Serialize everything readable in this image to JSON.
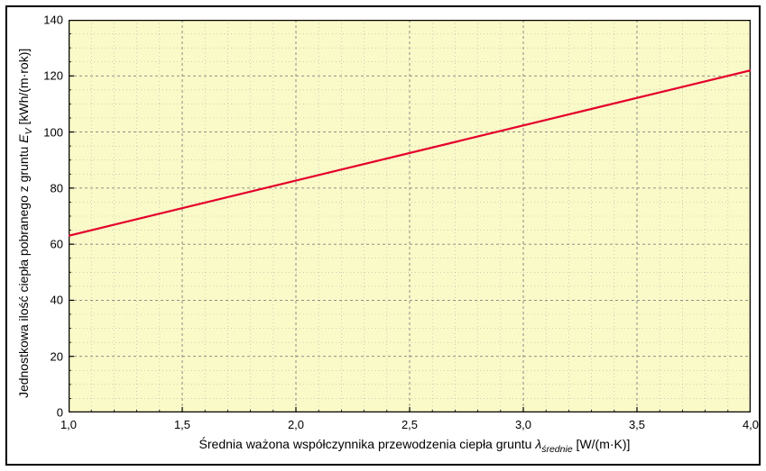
{
  "chart": {
    "type": "line",
    "background_outer": "#ffffff",
    "background_plot": "#fafac8",
    "axis_color": "#000000",
    "grid_major_color": "#808080",
    "grid_minor_color": "#b0b0b0",
    "grid_dash_major": "3,3",
    "grid_dash_minor": "1,3",
    "line_color": "#e4002b",
    "line_width": 2.2,
    "xlim": [
      1.0,
      4.0
    ],
    "ylim": [
      0,
      140
    ],
    "x_major_ticks": [
      1.0,
      1.5,
      2.0,
      2.5,
      3.0,
      3.5,
      4.0
    ],
    "x_tick_labels": [
      "1,0",
      "1,5",
      "2,0",
      "2,5",
      "3,0",
      "3,5",
      "4,0"
    ],
    "x_minor_step": 0.1,
    "y_major_ticks": [
      0,
      20,
      40,
      60,
      80,
      100,
      120,
      140
    ],
    "y_tick_labels": [
      "0",
      "20",
      "40",
      "60",
      "80",
      "100",
      "120",
      "140"
    ],
    "y_minor_step": 5,
    "data_x": [
      1.0,
      4.0
    ],
    "data_y": [
      63,
      122
    ],
    "ylabel_pre": "Jednostkowa ilość ciepła pobranego z gruntu ",
    "ylabel_sym": "E",
    "ylabel_sub": "V",
    "ylabel_unit": "  [kWh/(m·rok)]",
    "xlabel_pre": "Średnia ważona współczynnika przewodzenia ciepła gruntu ",
    "xlabel_sym": "λ",
    "xlabel_sub": "średnie",
    "xlabel_unit": " [W/(m·K)]",
    "tick_len_major": 6,
    "tick_len_minor": 3
  }
}
